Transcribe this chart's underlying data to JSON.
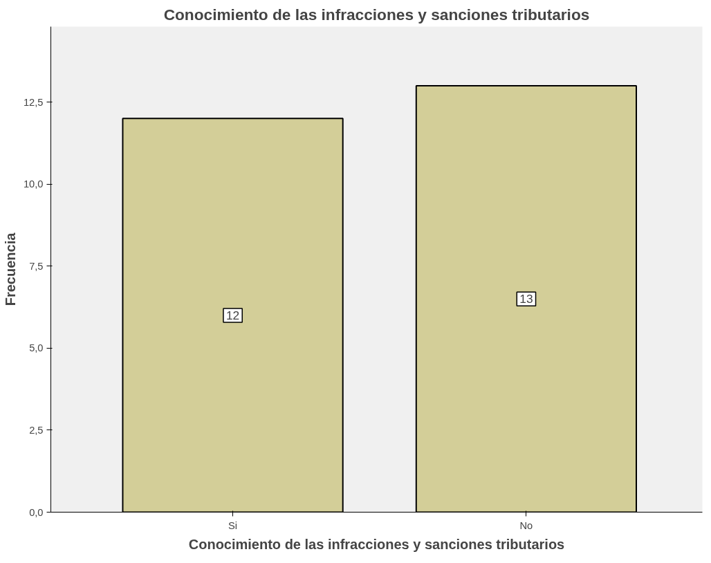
{
  "chart_data": {
    "type": "bar",
    "title": "Conocimiento de las infracciones y sanciones tributarios",
    "xlabel": "Conocimiento de las infracciones y sanciones tributarios",
    "ylabel": "Frecuencia",
    "categories": [
      "Si",
      "No"
    ],
    "values": [
      12,
      13
    ],
    "color": "#d3ce98",
    "data_labels": true,
    "grid": false,
    "ylim": [
      0,
      14.8
    ],
    "yticks": [
      {
        "value": 0,
        "label": "0,0"
      },
      {
        "value": 2.5,
        "label": "2,5"
      },
      {
        "value": 5,
        "label": "5,0"
      },
      {
        "value": 7.5,
        "label": "7,5"
      },
      {
        "value": 10,
        "label": "10,0"
      },
      {
        "value": 12.5,
        "label": "12,5"
      }
    ]
  }
}
